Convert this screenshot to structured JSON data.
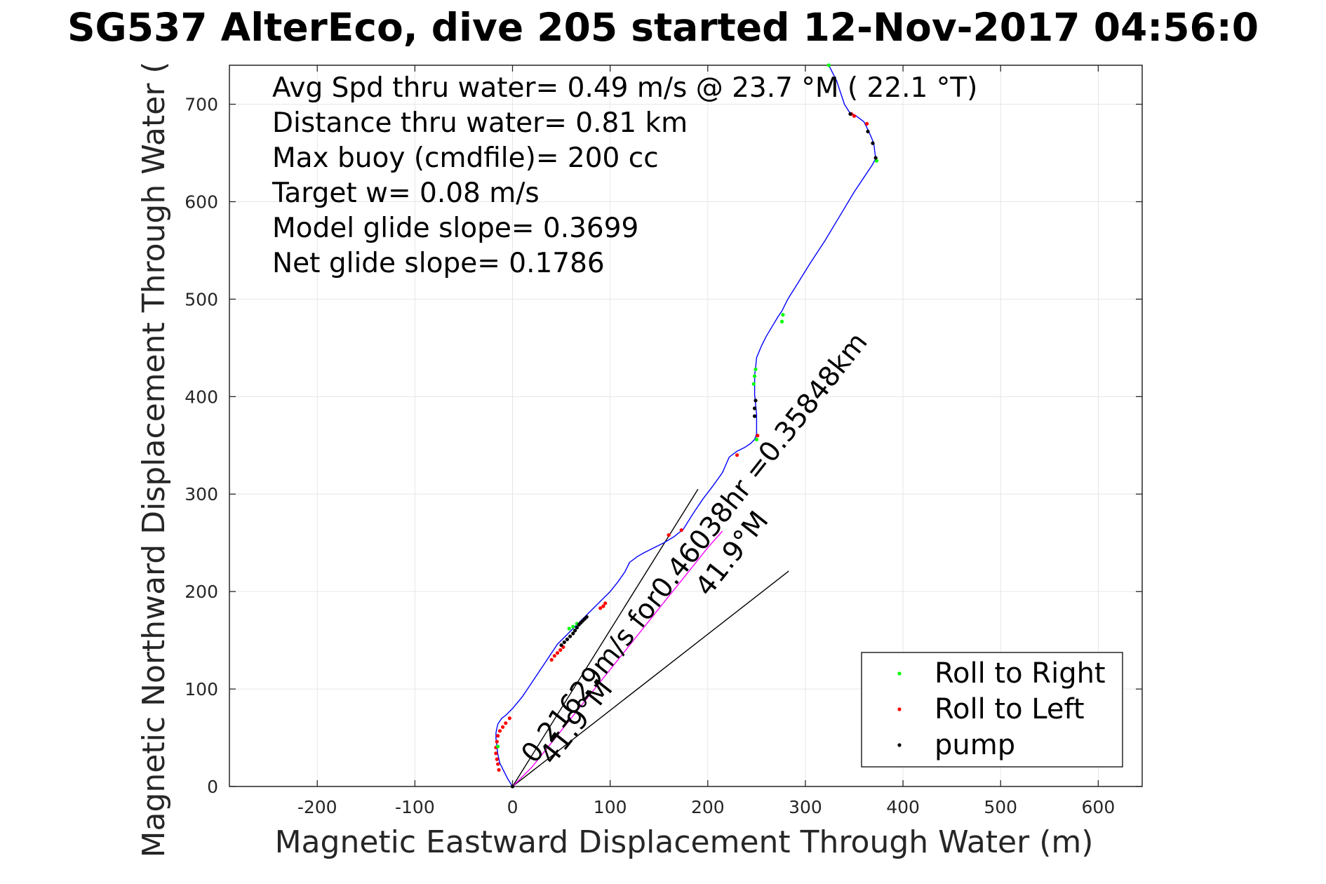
{
  "chart_data": {
    "type": "line",
    "title": "SG537 AlterEco, dive 205 started 12-Nov-2017 04:56:0",
    "xlabel": "Magnetic Eastward Displacement Through Water (m)",
    "ylabel": "Magnetic Northward Displacement Through Water (",
    "xlim": [
      -290,
      645
    ],
    "ylim": [
      0,
      740
    ],
    "xticks": [
      -200,
      -100,
      0,
      100,
      200,
      300,
      400,
      500,
      600
    ],
    "yticks": [
      0,
      100,
      200,
      300,
      400,
      500,
      600,
      700
    ],
    "grid": true,
    "legend_position": "bottom-right",
    "colors": {
      "track": "#0000ff",
      "roll_right": "#00ff00",
      "roll_left": "#ff0000",
      "pump": "#000000",
      "heading_line": "#000000",
      "glide_line": "#ff00ff"
    },
    "annotations": [
      "Avg Spd thru water=  0.49 m/s @  23.7 °M ( 22.1 °T)",
      "Distance thru water=  0.81 km",
      "Max buoy (cmdfile)= 200 cc",
      "Target w= 0.08 m/s",
      "Model glide slope= 0.3699",
      "Net glide slope= 0.1786"
    ],
    "rotated_labels": {
      "current": "0.21629m/s for0.46038hr =0.35848km",
      "heading_1": "41.9°M",
      "heading_2": "41.9°M"
    },
    "track": {
      "x": [
        0,
        -5,
        -9,
        -13,
        -15,
        -16,
        -17,
        -17,
        -16,
        -15,
        -13,
        -11,
        -7,
        -4,
        0,
        5,
        10,
        14,
        18,
        22,
        26,
        30,
        34,
        38,
        42,
        46,
        50,
        55,
        60,
        65,
        70,
        75,
        80,
        85,
        90,
        95,
        100,
        108,
        115,
        120,
        128,
        135,
        145,
        155,
        165,
        175,
        185,
        195,
        205,
        215,
        222,
        230,
        238,
        244,
        248,
        250,
        250,
        250,
        249,
        248,
        248,
        248,
        249,
        250,
        255,
        260,
        266,
        272,
        276,
        282,
        292,
        305,
        320,
        335,
        350,
        360,
        368,
        372,
        370,
        365,
        360,
        352,
        345,
        340,
        336,
        332,
        328,
        324
      ],
      "y": [
        0,
        8,
        16,
        24,
        33,
        41,
        49,
        55,
        60,
        64,
        67,
        70,
        73,
        76,
        80,
        86,
        92,
        98,
        104,
        110,
        116,
        122,
        128,
        134,
        140,
        146,
        150,
        155,
        160,
        165,
        170,
        175,
        180,
        185,
        190,
        195,
        200,
        210,
        220,
        230,
        236,
        240,
        245,
        250,
        256,
        264,
        280,
        295,
        308,
        322,
        338,
        344,
        348,
        352,
        356,
        362,
        372,
        382,
        392,
        402,
        412,
        422,
        430,
        440,
        452,
        462,
        472,
        482,
        488,
        500,
        516,
        537,
        560,
        585,
        610,
        625,
        637,
        644,
        660,
        672,
        682,
        688,
        692,
        700,
        712,
        724,
        732,
        740
      ]
    },
    "glide_track": {
      "x": [
        0,
        20,
        40,
        60,
        80,
        100,
        120,
        140,
        160,
        180,
        200,
        215
      ],
      "y": [
        0,
        20,
        45,
        70,
        95,
        120,
        145,
        170,
        195,
        220,
        245,
        262
      ]
    },
    "roll_right": {
      "x": [
        -15,
        58,
        62,
        66,
        247,
        248,
        249,
        250,
        276,
        277,
        373,
        324
      ],
      "y": [
        41,
        162,
        164,
        167,
        413,
        421,
        428,
        356,
        477,
        484,
        642,
        740
      ]
    },
    "roll_left": {
      "x": [
        -14,
        -15,
        -16,
        -17,
        -17,
        -16,
        -15,
        -13,
        -10,
        -7,
        -3,
        40,
        43,
        46,
        49,
        52,
        90,
        93,
        95,
        160,
        173,
        230,
        251,
        347,
        350,
        363
      ],
      "y": [
        17,
        23,
        28,
        34,
        40,
        46,
        52,
        57,
        61,
        65,
        70,
        130,
        134,
        137,
        140,
        143,
        183,
        185,
        188,
        258,
        263,
        340,
        360,
        690,
        688,
        680
      ]
    },
    "pump": {
      "x": [
        0,
        50,
        53,
        56,
        59,
        62,
        64,
        66,
        68,
        70,
        72,
        74,
        76,
        248,
        248,
        249,
        372,
        369,
        364,
        346
      ],
      "y": [
        0,
        145,
        148,
        151,
        154,
        157,
        160,
        163,
        166,
        168,
        170,
        172,
        174,
        380,
        388,
        396,
        645,
        660,
        672,
        690
      ]
    },
    "heading_lines": [
      {
        "x": [
          0,
          190
        ],
        "y": [
          0,
          305
        ]
      },
      {
        "x": [
          0,
          283
        ],
        "y": [
          0,
          221
        ]
      }
    ],
    "legend": [
      {
        "label": "Roll to Right",
        "color": "#00ff00"
      },
      {
        "label": "Roll to Left",
        "color": "#ff0000"
      },
      {
        "label": "pump",
        "color": "#000000"
      }
    ]
  }
}
